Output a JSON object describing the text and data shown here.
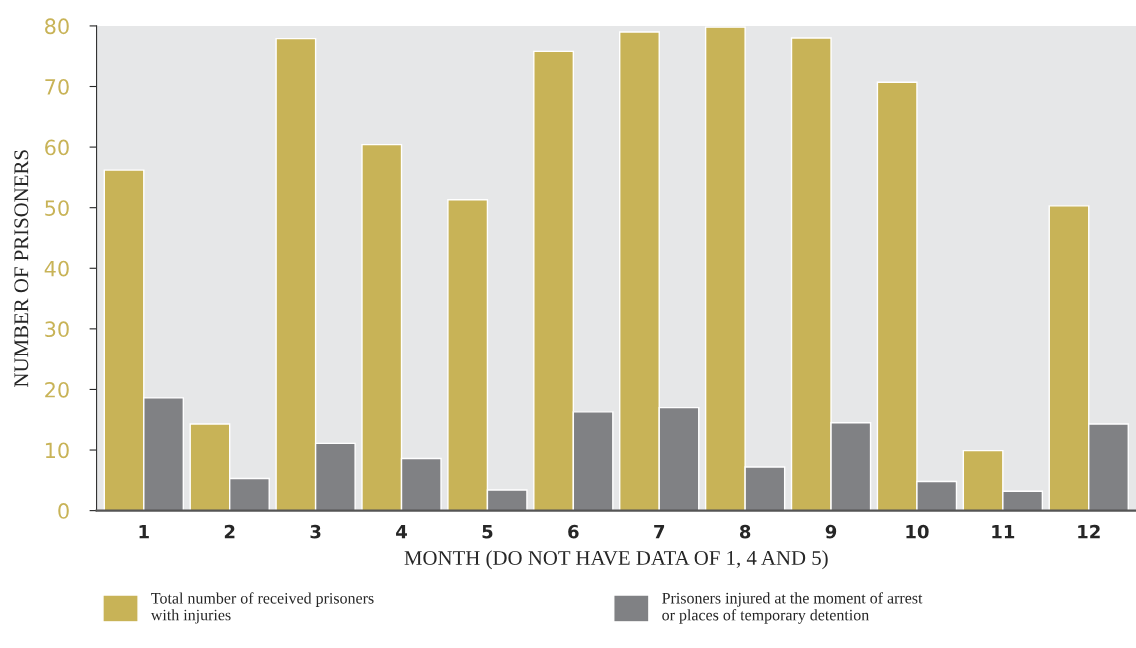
{
  "chart_data": {
    "type": "bar",
    "xlabel": "MONTH (DO NOT HAVE DATA OF 1, 4 AND 5)",
    "ylabel": "NUMBER OF PRISONERS",
    "categories": [
      "1",
      "2",
      "3",
      "4",
      "5",
      "6",
      "7",
      "8",
      "9",
      "10",
      "11",
      "12"
    ],
    "series": [
      {
        "name": "Total number of received prisoners\nwith injuries",
        "color": "#c8b357",
        "values": [
          56.2,
          14.3,
          77.9,
          60.4,
          51.3,
          75.8,
          79.0,
          79.8,
          78.0,
          70.7,
          9.9,
          50.3
        ]
      },
      {
        "name": "Prisoners injured at the moment of arrest\nor places of temporary detention",
        "color": "#808184",
        "values": [
          18.6,
          5.3,
          11.1,
          8.6,
          3.4,
          16.3,
          17.0,
          7.2,
          14.5,
          4.8,
          3.2,
          14.3
        ]
      }
    ],
    "ylim": [
      0,
      80
    ],
    "yticks": [
      0,
      10,
      20,
      30,
      40,
      50,
      60,
      70,
      80
    ],
    "grid": false,
    "legend": "bottom"
  }
}
